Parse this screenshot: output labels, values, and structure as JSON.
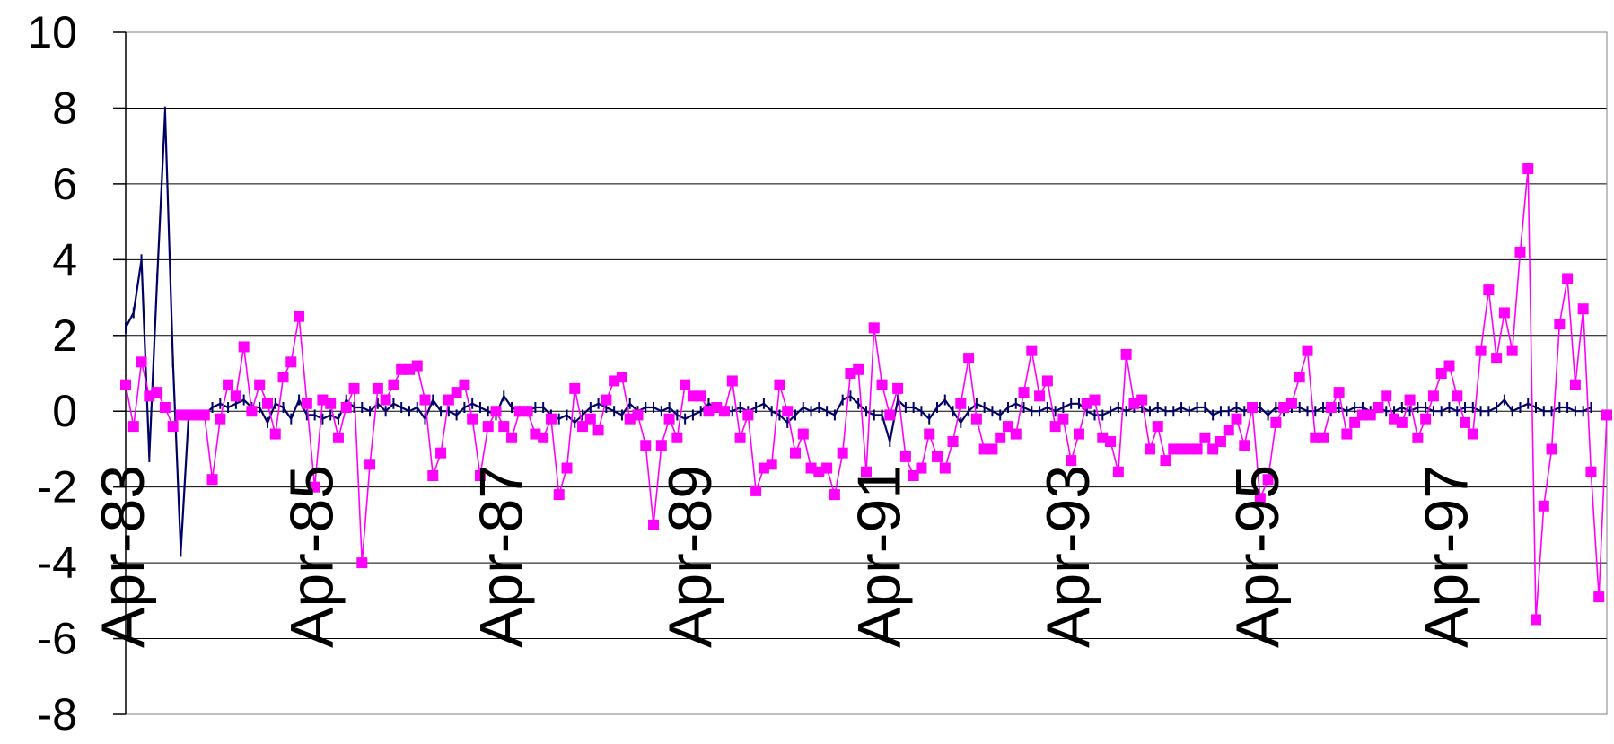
{
  "chart_data": {
    "type": "line",
    "title": "",
    "xlabel": "",
    "ylabel": "",
    "ylim": [
      -8,
      10
    ],
    "y_ticks": [
      "10",
      "8",
      "6",
      "4",
      "2",
      "0",
      "-2",
      "-4",
      "-6",
      "-8"
    ],
    "x_tick_labels": [
      "Apr-83",
      "Apr-85",
      "Apr-87",
      "Apr-89",
      "Apr-91",
      "Apr-93",
      "Apr-95",
      "Apr-97"
    ],
    "x_tick_month_index": [
      0,
      24,
      48,
      72,
      96,
      120,
      144,
      168
    ],
    "grid": true,
    "legend": "none",
    "series": [
      {
        "color": "#000066",
        "marker": "dash",
        "values": [
          2.2,
          2.6,
          4.0,
          -1.2,
          3.5,
          7.9,
          1.3,
          -3.7,
          -0.1,
          -0.1,
          -0.1,
          0.1,
          0.2,
          0.1,
          0.2,
          0.3,
          0.1,
          0.1,
          -0.3,
          0.2,
          0.1,
          -0.2,
          0.3,
          -0.1,
          -0.1,
          -0.2,
          -0.1,
          -0.2,
          0.3,
          0.1,
          0.1,
          0.0,
          0.2,
          0.0,
          0.2,
          0.1,
          0.0,
          0.1,
          -0.2,
          0.3,
          0.0,
          0.0,
          -0.1,
          0.1,
          0.2,
          0.1,
          0.0,
          -0.1,
          0.4,
          0.1,
          0.0,
          0.0,
          0.1,
          0.1,
          -0.1,
          -0.2,
          -0.1,
          -0.3,
          -0.1,
          0.1,
          0.2,
          0.1,
          0.0,
          -0.1,
          0.2,
          0.0,
          0.1,
          0.1,
          0.0,
          0.1,
          -0.1,
          -0.2,
          -0.1,
          0.0,
          0.2,
          0.1,
          0.0,
          0.0,
          0.1,
          0.0,
          0.1,
          0.2,
          0.0,
          -0.1,
          -0.3,
          -0.1,
          0.1,
          0.0,
          0.1,
          0.0,
          -0.1,
          0.3,
          0.4,
          0.2,
          0.0,
          -0.1,
          -0.1,
          -0.8,
          0.3,
          0.1,
          0.1,
          0.0,
          -0.2,
          0.1,
          0.3,
          0.0,
          -0.3,
          0.0,
          0.2,
          0.1,
          0.0,
          -0.1,
          0.1,
          0.2,
          0.1,
          0.0,
          0.0,
          0.1,
          0.0,
          0.1,
          0.2,
          0.2,
          0.0,
          -0.1,
          -0.1,
          0.0,
          0.1,
          0.0,
          0.1,
          0.1,
          0.0,
          0.1,
          0.0,
          0.0,
          0.1,
          0.0,
          0.1,
          0.1,
          -0.1,
          0.0,
          0.0,
          0.1,
          0.0,
          0.1,
          0.1,
          -0.1,
          0.1,
          0.0,
          0.1,
          0.1,
          0.0,
          0.0,
          0.1,
          0.0,
          0.1,
          0.0,
          0.1,
          0.1,
          0.0,
          0.1,
          0.0,
          0.0,
          0.1,
          0.0,
          0.1,
          0.1,
          0.0,
          0.0,
          0.1,
          0.0,
          0.1,
          0.1,
          0.0,
          0.0,
          0.1,
          0.3,
          0.0,
          0.1,
          0.2,
          0.1,
          0.0,
          0.0,
          0.1,
          0.1,
          0.0,
          0.0,
          0.1
        ]
      },
      {
        "color": "#ff00ff",
        "marker": "square",
        "values": [
          0.7,
          -0.4,
          1.3,
          0.4,
          0.5,
          0.1,
          -0.4,
          -0.1,
          -0.1,
          -0.1,
          -0.1,
          -1.8,
          -0.2,
          0.7,
          0.4,
          1.7,
          0.0,
          0.7,
          0.2,
          -0.6,
          0.9,
          1.3,
          2.5,
          0.2,
          -2.0,
          0.3,
          0.2,
          -0.7,
          0.1,
          0.6,
          -4.0,
          -1.4,
          0.6,
          0.3,
          0.7,
          1.1,
          1.1,
          1.2,
          0.3,
          -1.7,
          -1.1,
          0.3,
          0.5,
          0.7,
          -0.2,
          -1.7,
          -0.4,
          0.0,
          -0.4,
          -0.7,
          0.0,
          0.0,
          -0.6,
          -0.7,
          -0.2,
          -2.2,
          -1.5,
          0.6,
          -0.4,
          -0.2,
          -0.5,
          0.3,
          0.8,
          0.9,
          -0.2,
          -0.1,
          -0.9,
          -3.0,
          -0.9,
          -0.2,
          -0.7,
          0.7,
          0.4,
          0.4,
          0.0,
          0.1,
          0.0,
          0.8,
          -0.7,
          -0.1,
          -2.1,
          -1.5,
          -1.4,
          0.7,
          0.0,
          -1.1,
          -0.6,
          -1.5,
          -1.6,
          -1.5,
          -2.2,
          -1.1,
          1.0,
          1.1,
          -1.6,
          2.2,
          0.7,
          -0.1,
          0.6,
          -1.2,
          -1.7,
          -1.5,
          -0.6,
          -1.2,
          -1.5,
          -0.8,
          0.2,
          1.4,
          -0.2,
          -1.0,
          -1.0,
          -0.7,
          -0.4,
          -0.6,
          0.5,
          1.6,
          0.4,
          0.8,
          -0.4,
          -0.2,
          -1.3,
          -0.6,
          0.2,
          0.3,
          -0.7,
          -0.8,
          -1.6,
          1.5,
          0.2,
          0.3,
          -1.0,
          -0.4,
          -1.3,
          -1.0,
          -1.0,
          -1.0,
          -1.0,
          -0.7,
          -1.0,
          -0.8,
          -0.5,
          -0.2,
          -0.9,
          0.1,
          -2.3,
          -1.8,
          -0.3,
          0.1,
          0.2,
          0.9,
          1.6,
          -0.7,
          -0.7,
          0.1,
          0.5,
          -0.6,
          -0.3,
          -0.1,
          -0.1,
          0.1,
          0.4,
          -0.2,
          -0.3,
          0.3,
          -0.7,
          -0.2,
          0.4,
          1.0,
          1.2,
          0.4,
          -0.3,
          -0.6,
          1.6,
          3.2,
          1.4,
          2.6,
          1.6,
          4.2,
          6.4,
          -5.5,
          -2.5,
          -1.0,
          2.3,
          3.5,
          0.7,
          2.7,
          -1.6,
          -4.9,
          -0.1
        ]
      }
    ]
  }
}
